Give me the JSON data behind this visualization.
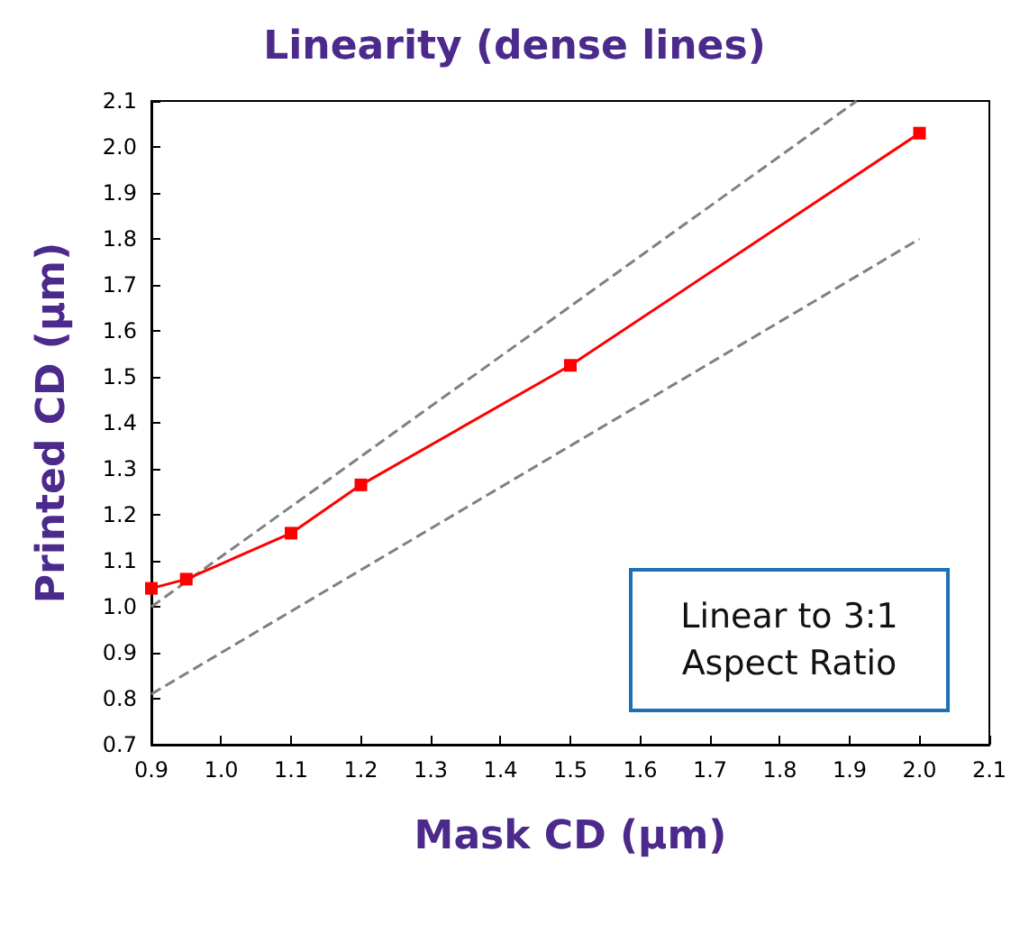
{
  "chart_data": {
    "type": "line",
    "title": "Linearity (dense lines)",
    "xlabel": "Mask CD (µm)",
    "ylabel": "Printed CD (µm)",
    "x": [
      0.9,
      0.95,
      1.1,
      1.2,
      1.5,
      2.0
    ],
    "series": [
      {
        "color": "#ff0000",
        "values": [
          1.04,
          1.06,
          1.16,
          1.265,
          1.525,
          2.03
        ],
        "marker": "square",
        "line_style": "solid"
      },
      {
        "type": "line",
        "color": "#808080",
        "x": [
          0.9,
          1.91
        ],
        "values": [
          1.0,
          2.1
        ],
        "marker": "none",
        "line_style": "dashed"
      },
      {
        "type": "line",
        "color": "#808080",
        "x": [
          0.9,
          2.0
        ],
        "values": [
          0.81,
          1.8
        ],
        "marker": "none",
        "line_style": "dashed"
      }
    ],
    "xlim": [
      0.9,
      2.1
    ],
    "xticks": [
      0.9,
      {
        "value": 1,
        "label": "1.0"
      },
      1.1,
      1.2,
      1.3,
      1.4,
      1.5,
      1.6,
      1.7,
      1.8,
      1.9,
      {
        "value": 2,
        "label": "2.0"
      },
      2.1
    ],
    "ylim": [
      0.7,
      2.1
    ],
    "yticks": [
      0.7,
      0.8,
      0.9,
      {
        "value": 1,
        "label": "1.0"
      },
      1.1,
      1.2,
      1.3,
      1.4,
      1.5,
      1.6,
      1.7,
      1.8,
      1.9,
      {
        "value": 2,
        "label": "2.0"
      },
      2.1
    ],
    "grid": false,
    "annotations": [
      "Linear to 3:1\nAspect Ratio"
    ]
  }
}
